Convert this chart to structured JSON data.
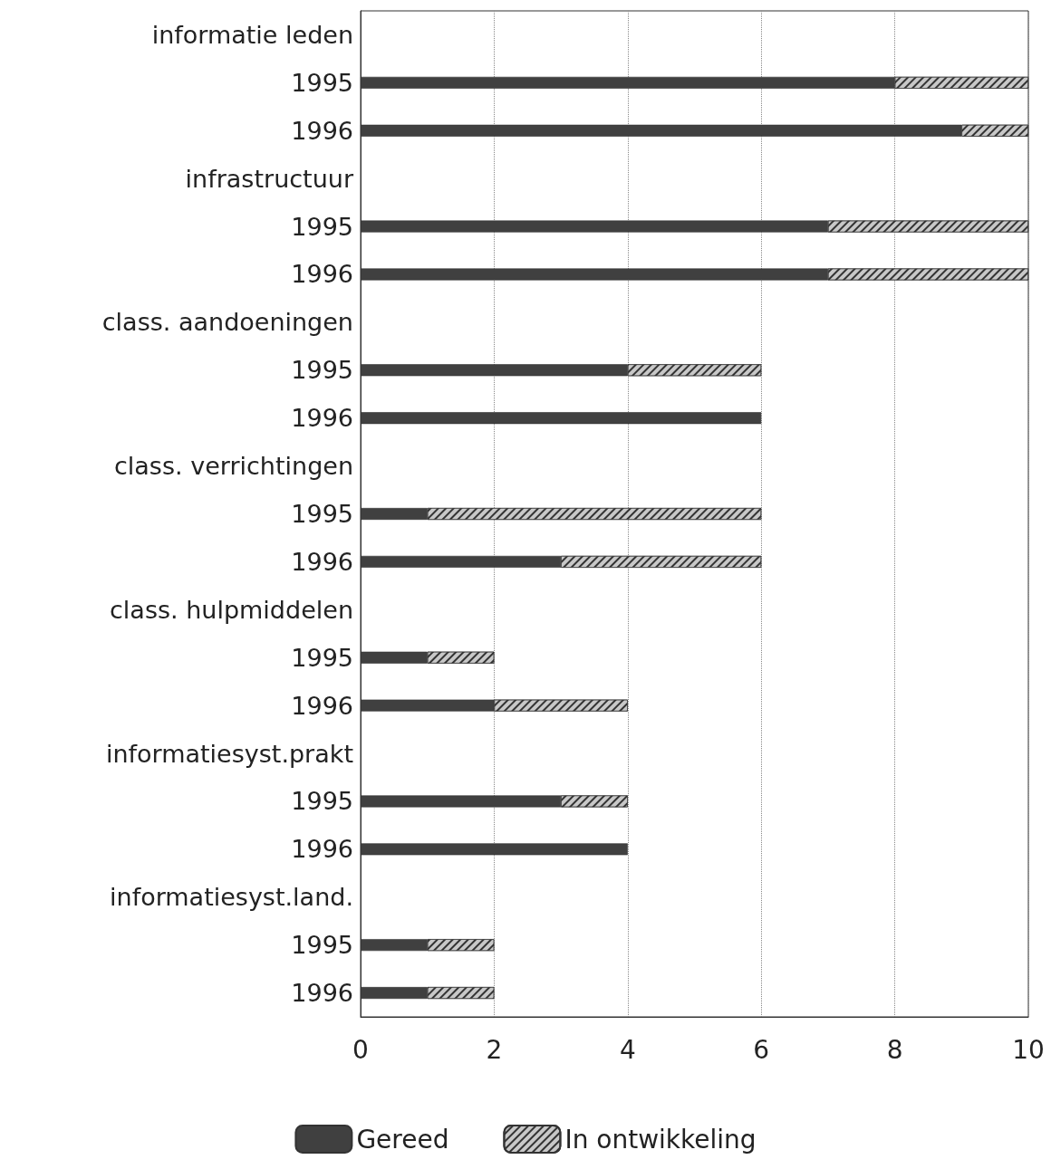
{
  "chart_data": {
    "type": "bar",
    "orientation": "horizontal",
    "stacked": true,
    "categories": [
      "informatie leden",
      "1995",
      "1996",
      "infrastructuur",
      "1995",
      "1996",
      "class. aandoeningen",
      "1995",
      "1996",
      "class. verrichtingen",
      "1995",
      "1996",
      "class. hulpmiddelen",
      "1995",
      "1996",
      "informatiesyst.prakt",
      "1995",
      "1996",
      "informatiesyst.land.",
      "1995",
      "1996"
    ],
    "series": [
      {
        "name": "Gereed",
        "color": "#404040",
        "values": [
          null,
          8,
          9,
          null,
          7,
          7,
          null,
          4,
          6,
          null,
          1,
          3,
          null,
          1,
          2,
          null,
          3,
          4,
          null,
          1,
          1
        ]
      },
      {
        "name": "In ontwikkeling",
        "color": "#c8c8c8",
        "values": [
          null,
          2,
          1,
          null,
          3,
          3,
          null,
          2,
          null,
          null,
          5,
          3,
          null,
          1,
          2,
          null,
          1,
          null,
          null,
          1,
          1
        ]
      }
    ],
    "xlim": [
      0,
      10
    ],
    "xticks": [
      0,
      2,
      4,
      6,
      8,
      10
    ],
    "grid": "x",
    "legend": "bottom"
  }
}
